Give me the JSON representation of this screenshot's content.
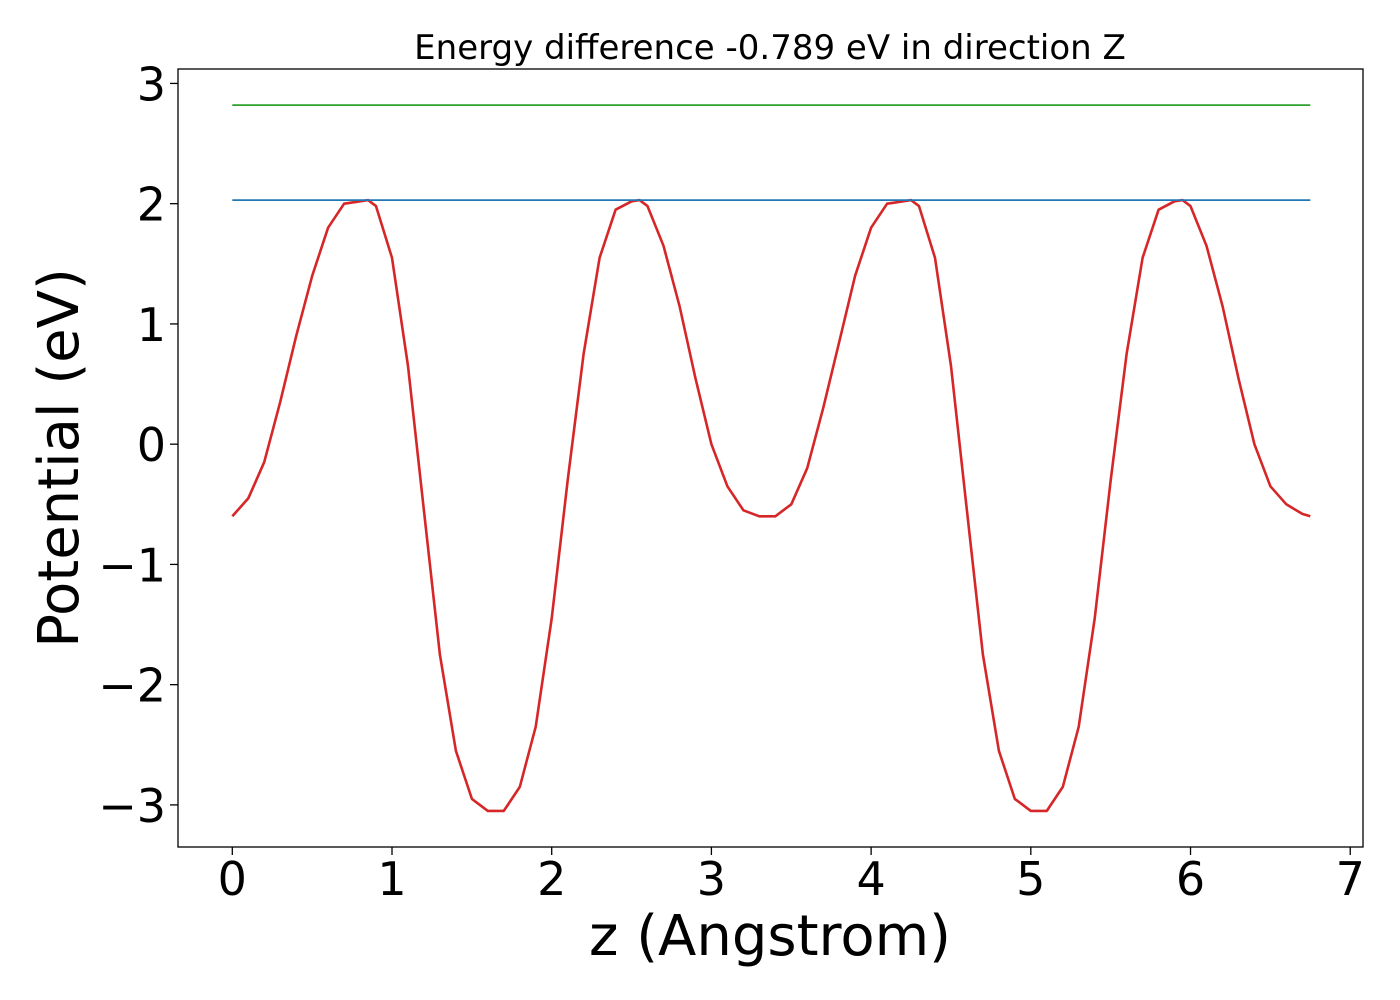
{
  "chart_data": {
    "type": "line",
    "title": "Energy difference -0.789 eV in direction Z",
    "xlabel": "z (Angstrom)",
    "ylabel": "Potential (eV)",
    "xlim": [
      -0.34,
      7.08
    ],
    "ylim": [
      -3.35,
      3.12
    ],
    "xticks": [
      0,
      1,
      2,
      3,
      4,
      5,
      6,
      7
    ],
    "xtick_labels": [
      "0",
      "1",
      "2",
      "3",
      "4",
      "5",
      "6",
      "7"
    ],
    "yticks": [
      -3,
      -2,
      -1,
      0,
      1,
      2,
      3
    ],
    "ytick_labels": [
      "−3",
      "−2",
      "−1",
      "0",
      "1",
      "2",
      "3"
    ],
    "grid": false,
    "legend": false,
    "series": [
      {
        "color": "#d62728",
        "x": [
          0.0,
          0.1,
          0.2,
          0.3,
          0.4,
          0.5,
          0.6,
          0.7,
          0.8,
          0.85,
          0.9,
          1.0,
          1.1,
          1.2,
          1.3,
          1.4,
          1.5,
          1.6,
          1.7,
          1.8,
          1.9,
          2.0,
          2.1,
          2.2,
          2.3,
          2.4,
          2.5,
          2.55,
          2.6,
          2.7,
          2.8,
          2.9,
          3.0,
          3.1,
          3.2,
          3.3,
          3.4,
          3.5,
          3.6,
          3.7,
          3.8,
          3.9,
          4.0,
          4.1,
          4.2,
          4.25,
          4.3,
          4.4,
          4.5,
          4.6,
          4.7,
          4.8,
          4.9,
          5.0,
          5.1,
          5.2,
          5.3,
          5.4,
          5.5,
          5.6,
          5.7,
          5.8,
          5.9,
          5.95,
          6.0,
          6.1,
          6.2,
          6.3,
          6.4,
          6.5,
          6.6,
          6.7,
          6.75
        ],
        "y": [
          -0.6,
          -0.45,
          -0.15,
          0.35,
          0.9,
          1.4,
          1.8,
          2.0,
          2.02,
          2.03,
          1.98,
          1.55,
          0.65,
          -0.55,
          -1.75,
          -2.55,
          -2.95,
          -3.05,
          -3.05,
          -2.85,
          -2.35,
          -1.45,
          -0.3,
          0.75,
          1.55,
          1.95,
          2.02,
          2.03,
          1.98,
          1.65,
          1.15,
          0.55,
          0.0,
          -0.35,
          -0.55,
          -0.6,
          -0.6,
          -0.5,
          -0.2,
          0.3,
          0.85,
          1.4,
          1.8,
          2.0,
          2.02,
          2.03,
          1.98,
          1.55,
          0.65,
          -0.55,
          -1.75,
          -2.55,
          -2.95,
          -3.05,
          -3.05,
          -2.85,
          -2.35,
          -1.45,
          -0.3,
          0.75,
          1.55,
          1.95,
          2.02,
          2.03,
          1.98,
          1.65,
          1.15,
          0.55,
          0.0,
          -0.35,
          -0.5,
          -0.58,
          -0.6
        ]
      },
      {
        "color": "#1f77b4",
        "x": [
          0.0,
          6.75
        ],
        "y": [
          2.03,
          2.03
        ]
      },
      {
        "color": "#2ca02c",
        "x": [
          0.0,
          6.75
        ],
        "y": [
          2.82,
          2.82
        ]
      }
    ]
  }
}
